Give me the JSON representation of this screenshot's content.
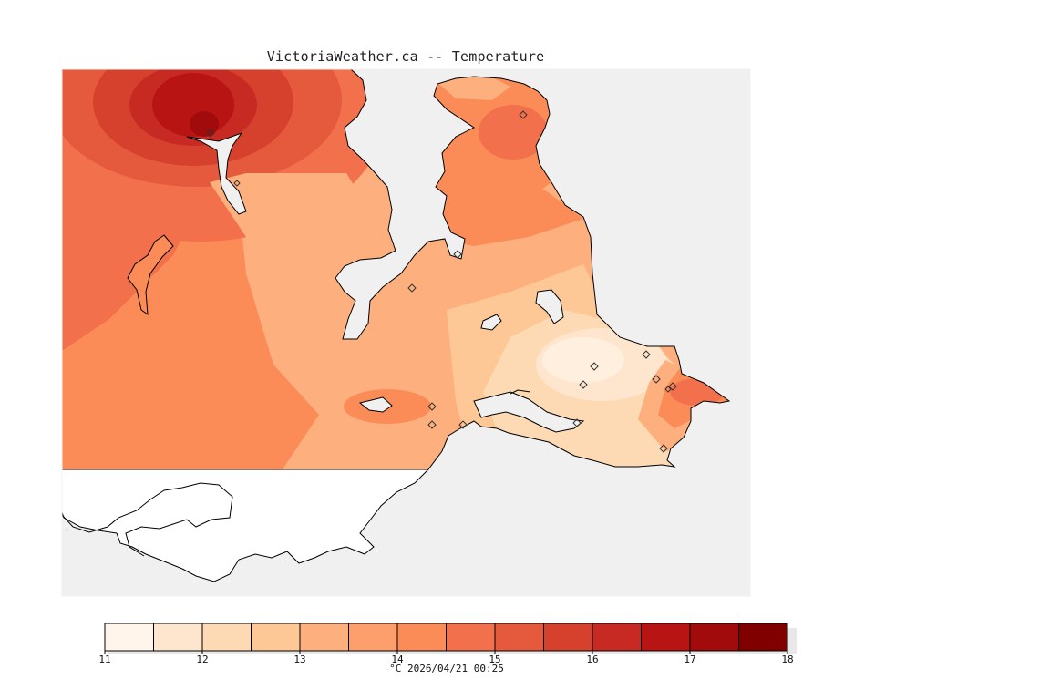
{
  "header": {
    "title": "VictoriaWeather.ca -- Temperature"
  },
  "colorbar": {
    "ticks": [
      "11",
      "12",
      "13",
      "14",
      "15",
      "16",
      "17",
      "18"
    ],
    "colors": [
      "#fff5eb",
      "#fee6ce",
      "#fdd9b4",
      "#fdc895",
      "#fdb07e",
      "#fd9f6c",
      "#fb8c58",
      "#f3704c",
      "#e55a3c",
      "#d6412e",
      "#c62a23",
      "#b81414",
      "#a20b0b",
      "#800000"
    ],
    "caption": "°C  2026/04/21 00:25"
  },
  "map": {
    "sea_color": "#f0f0f0",
    "land_outside_color": "#ffffff",
    "coast_color": "#000000",
    "station_markers": 16
  }
}
